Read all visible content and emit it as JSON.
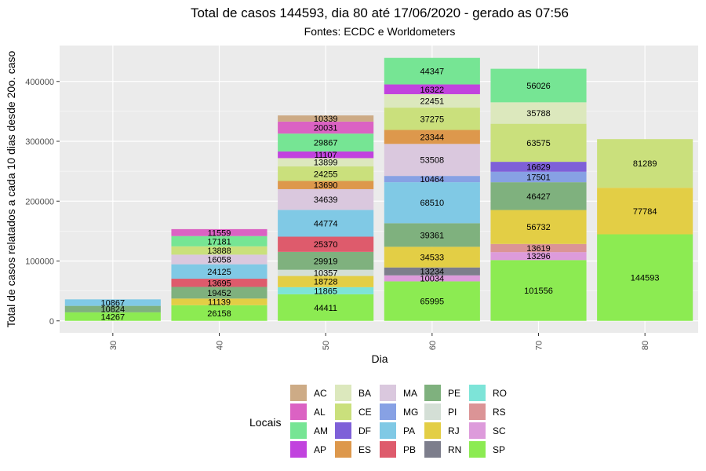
{
  "chart_data": {
    "type": "bar",
    "stacked": true,
    "title": "Total de casos 144593, dia 80 até 17/06/2020 - gerado as 07:56",
    "subtitle": "Fontes: ECDC e Worldometers",
    "xlabel": "Dia",
    "ylabel": "Total de casos relatados a cada 10 dias desde 20o. caso",
    "categories": [
      "30",
      "40",
      "50",
      "60",
      "70",
      "80"
    ],
    "y_ticks": [
      0,
      100000,
      200000,
      300000,
      400000
    ],
    "y_tick_labels": [
      "0",
      "100000",
      "200000",
      "300000",
      "400000"
    ],
    "ylim": [
      -20000,
      460000
    ],
    "grid": true,
    "legend_title": "Locais",
    "legend_position": "bottom",
    "series": [
      {
        "name": "SP",
        "color": "#8CEB52",
        "values": [
          14267,
          26158,
          44411,
          65995,
          101556,
          144593
        ]
      },
      {
        "name": "SC",
        "color": "#DD9BDB",
        "values": [
          0,
          0,
          0,
          10034,
          13296,
          0
        ]
      },
      {
        "name": "RS",
        "color": "#DB9496",
        "values": [
          0,
          0,
          0,
          0,
          13619,
          0
        ]
      },
      {
        "name": "RO",
        "color": "#7DE4D8",
        "values": [
          0,
          0,
          11865,
          0,
          0,
          0
        ]
      },
      {
        "name": "RN",
        "color": "#7D7E8C",
        "values": [
          0,
          0,
          0,
          13234,
          0,
          0
        ]
      },
      {
        "name": "RJ",
        "color": "#E3CE45",
        "values": [
          0,
          11139,
          18728,
          34533,
          56732,
          77784
        ]
      },
      {
        "name": "PI",
        "color": "#D4DFD6",
        "values": [
          0,
          0,
          10357,
          0,
          0,
          0
        ]
      },
      {
        "name": "PE",
        "color": "#7FB17E",
        "values": [
          10824,
          19452,
          29919,
          39361,
          46427,
          0
        ]
      },
      {
        "name": "PB",
        "color": "#DE5B6C",
        "values": [
          0,
          13695,
          25370,
          0,
          0,
          0
        ]
      },
      {
        "name": "PA",
        "color": "#80C9E5",
        "values": [
          10867,
          24125,
          44774,
          68510,
          0,
          0
        ]
      },
      {
        "name": "MG",
        "color": "#87A1E4",
        "values": [
          0,
          0,
          0,
          10464,
          17501,
          0
        ]
      },
      {
        "name": "MA",
        "color": "#DAC8DE",
        "values": [
          0,
          16058,
          34639,
          53508,
          0,
          0
        ]
      },
      {
        "name": "ES",
        "color": "#DD984C",
        "values": [
          0,
          0,
          13690,
          23344,
          0,
          0
        ]
      },
      {
        "name": "DF",
        "color": "#7E60D8",
        "values": [
          0,
          0,
          0,
          0,
          16629,
          0
        ]
      },
      {
        "name": "CE",
        "color": "#CAE07C",
        "values": [
          0,
          13888,
          24255,
          37275,
          63575,
          81289
        ]
      },
      {
        "name": "BA",
        "color": "#DCE8BD",
        "values": [
          0,
          0,
          13899,
          22451,
          35788,
          0
        ]
      },
      {
        "name": "AP",
        "color": "#C143DE",
        "values": [
          0,
          0,
          11107,
          16322,
          0,
          0
        ]
      },
      {
        "name": "AM",
        "color": "#76E594",
        "values": [
          0,
          17181,
          29867,
          44347,
          56026,
          0
        ]
      },
      {
        "name": "AL",
        "color": "#DB62C3",
        "values": [
          0,
          11559,
          20031,
          0,
          0,
          0
        ]
      },
      {
        "name": "AC",
        "color": "#CDAB86",
        "values": [
          0,
          0,
          10339,
          0,
          0,
          0
        ]
      }
    ],
    "legend_order": [
      "AC",
      "AL",
      "AM",
      "AP",
      "BA",
      "CE",
      "DF",
      "ES",
      "MA",
      "MG",
      "PA",
      "PB",
      "PE",
      "PI",
      "RJ",
      "RN",
      "RO",
      "RS",
      "SC",
      "SP"
    ]
  }
}
